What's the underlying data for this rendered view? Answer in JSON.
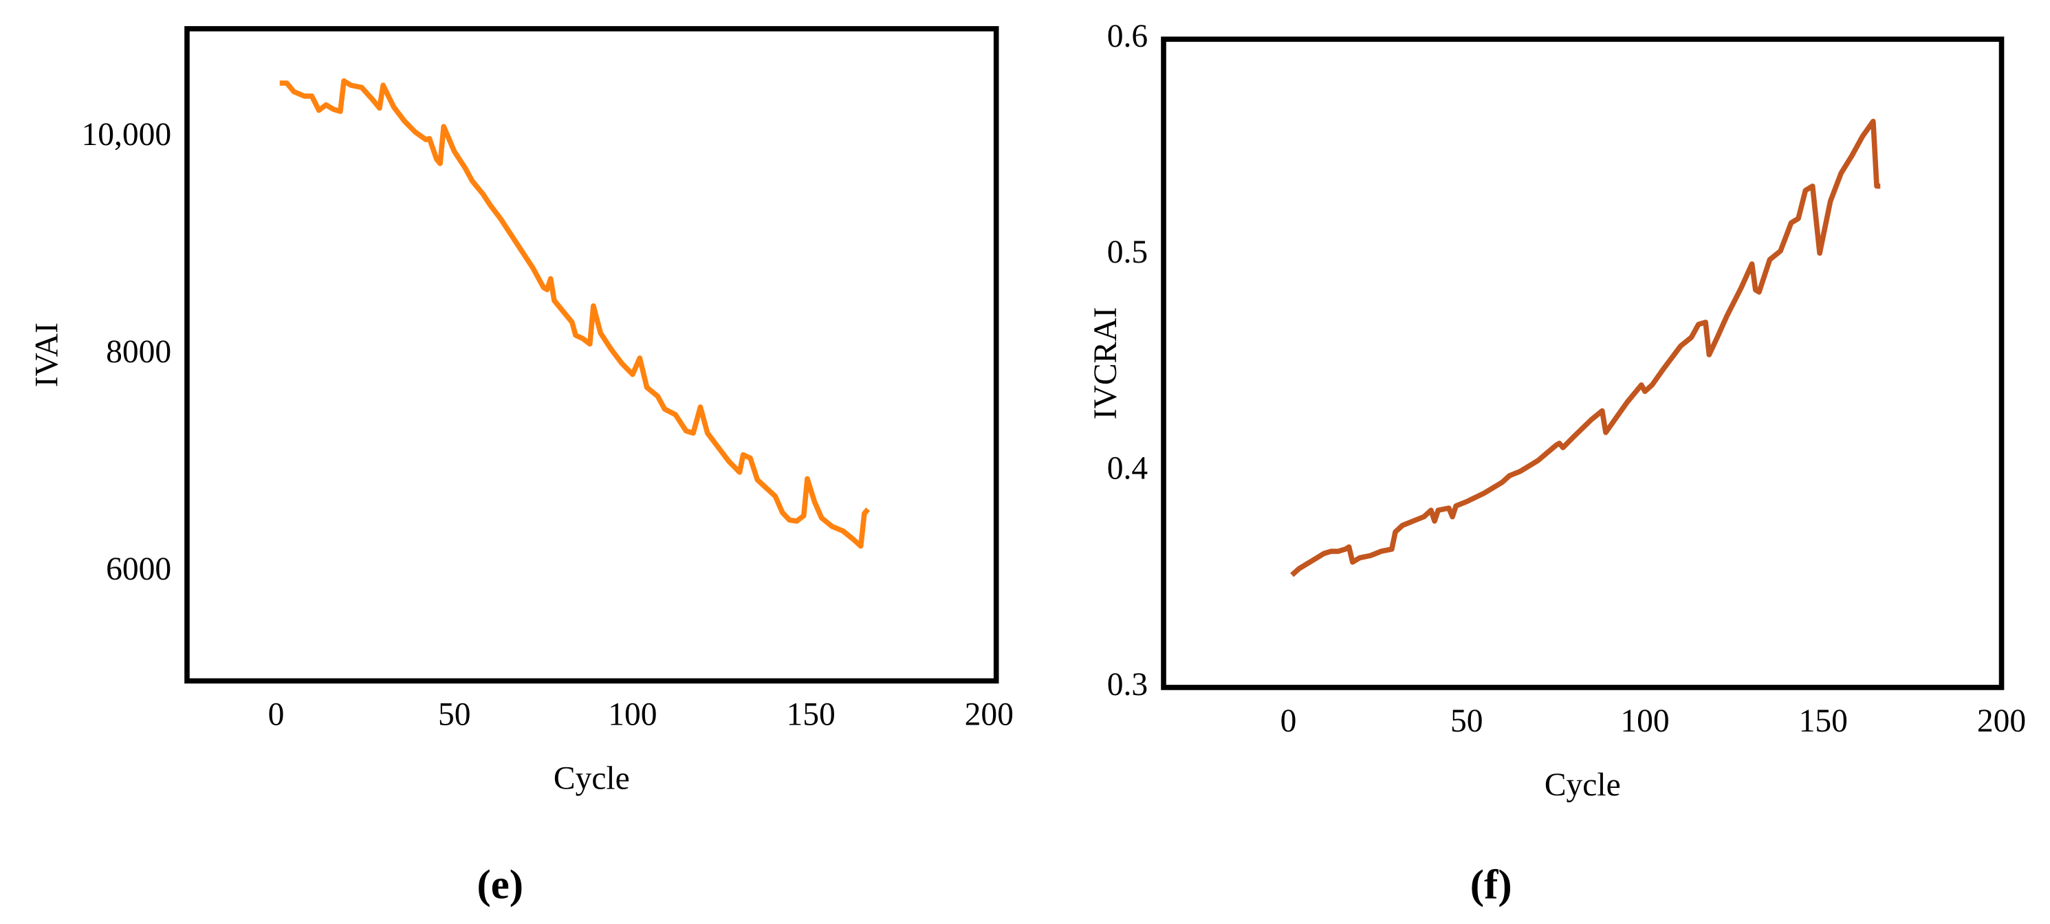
{
  "chart_data": [
    {
      "type": "line",
      "panel": "(e)",
      "x_label": "Cycle",
      "y_label": "IVAI",
      "color": "#ff820f",
      "xlim": [
        -25,
        202
      ],
      "xticks": [
        0,
        50,
        100,
        150,
        200
      ],
      "ylim": [
        5000,
        11000
      ],
      "yticks": [
        6000,
        8000,
        {
          "value": 10000,
          "label": "10,000"
        }
      ],
      "x": [
        1,
        3,
        5,
        8,
        10,
        12,
        14,
        16,
        18,
        19,
        21,
        24,
        27,
        29,
        30,
        33,
        36,
        39,
        42,
        43,
        45,
        46,
        47,
        50,
        53,
        55,
        58,
        60,
        63,
        66,
        69,
        72,
        75,
        76,
        77,
        78,
        81,
        83,
        84,
        86,
        88,
        89,
        91,
        94,
        97,
        100,
        102,
        104,
        107,
        109,
        112,
        115,
        117,
        119,
        121,
        124,
        127,
        130,
        131,
        133,
        135,
        138,
        140,
        142,
        144,
        146,
        148,
        149,
        151,
        153,
        156,
        159,
        162,
        164,
        165,
        166
      ],
      "values": [
        10500,
        10500,
        10420,
        10380,
        10380,
        10250,
        10300,
        10260,
        10240,
        10520,
        10480,
        10460,
        10350,
        10270,
        10480,
        10280,
        10150,
        10050,
        9980,
        9990,
        9800,
        9760,
        10100,
        9870,
        9720,
        9600,
        9480,
        9380,
        9250,
        9100,
        8950,
        8800,
        8620,
        8600,
        8700,
        8500,
        8380,
        8300,
        8180,
        8150,
        8100,
        8450,
        8200,
        8050,
        7920,
        7820,
        7970,
        7700,
        7620,
        7500,
        7450,
        7300,
        7280,
        7520,
        7280,
        7150,
        7020,
        6920,
        7080,
        7050,
        6850,
        6760,
        6700,
        6550,
        6480,
        6470,
        6520,
        6860,
        6650,
        6500,
        6420,
        6380,
        6300,
        6240,
        6540,
        6580
      ]
    },
    {
      "type": "line",
      "panel": "(f)",
      "x_label": "Cycle",
      "y_label": "IVCRAI",
      "color": "#c2561f",
      "xlim": [
        -35,
        200
      ],
      "xticks": [
        0,
        50,
        100,
        150,
        200
      ],
      "ylim": [
        0.3,
        0.6
      ],
      "yticks": [
        0.3,
        0.4,
        0.5,
        0.6
      ],
      "x": [
        1,
        3,
        5,
        8,
        10,
        12,
        14,
        16,
        17,
        18,
        20,
        23,
        26,
        29,
        30,
        32,
        35,
        38,
        40,
        41,
        42,
        45,
        46,
        47,
        50,
        55,
        60,
        62,
        65,
        70,
        75,
        76,
        77,
        80,
        85,
        88,
        89,
        92,
        95,
        99,
        100,
        102,
        105,
        110,
        113,
        115,
        117,
        118,
        120,
        123,
        127,
        130,
        131,
        132,
        135,
        138,
        141,
        143,
        145,
        147,
        149,
        152,
        155,
        158,
        161,
        164,
        165,
        166
      ],
      "values": [
        0.352,
        0.355,
        0.357,
        0.36,
        0.362,
        0.363,
        0.363,
        0.364,
        0.365,
        0.358,
        0.36,
        0.361,
        0.363,
        0.364,
        0.372,
        0.375,
        0.377,
        0.379,
        0.382,
        0.377,
        0.382,
        0.383,
        0.379,
        0.384,
        0.386,
        0.39,
        0.395,
        0.398,
        0.4,
        0.405,
        0.412,
        0.413,
        0.411,
        0.416,
        0.424,
        0.428,
        0.418,
        0.425,
        0.432,
        0.44,
        0.437,
        0.44,
        0.447,
        0.458,
        0.462,
        0.468,
        0.469,
        0.454,
        0.461,
        0.472,
        0.485,
        0.496,
        0.484,
        0.483,
        0.498,
        0.502,
        0.515,
        0.517,
        0.53,
        0.532,
        0.501,
        0.525,
        0.538,
        0.546,
        0.555,
        0.562,
        0.532,
        0.532
      ]
    }
  ]
}
